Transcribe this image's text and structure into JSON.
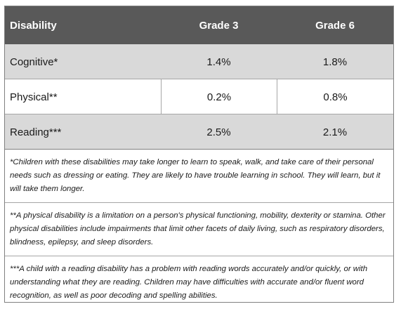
{
  "table": {
    "headers": [
      "Disability",
      "Grade 3",
      "Grade 6"
    ],
    "rows": [
      {
        "disability": "Cognitive*",
        "grade3": "1.4%",
        "grade6": "1.8%"
      },
      {
        "disability": "Physical**",
        "grade3": "0.2%",
        "grade6": "0.8%"
      },
      {
        "disability": "Reading***",
        "grade3": "2.5%",
        "grade6": "2.1%"
      }
    ]
  },
  "notes": [
    "*Children with these disabilities may take longer to learn to speak, walk, and take care of their personal needs such as dressing or eating. They are likely to have trouble learning in school. They will learn, but it will take them longer.",
    "**A physical disability is a limitation on a person's physical functioning, mobility, dexterity or stamina. Other physical disabilities include impairments that limit other facets of daily living, such as respiratory disorders, blindness, epilepsy, and sleep disorders.",
    "***A child with a reading disability has a problem with reading words accurately and/or quickly, or with understanding what they are reading. Children may have difficulties with accurate and/or fluent word recognition, as well as poor decoding and spelling abilities."
  ],
  "colors": {
    "header_bg": "#595959",
    "shaded_row_bg": "#d9d9d9",
    "border": "#a6a6a6"
  }
}
